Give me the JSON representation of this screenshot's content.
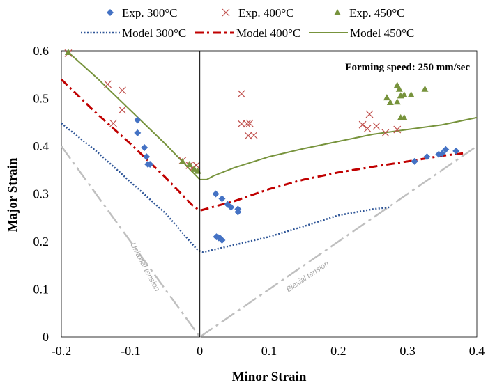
{
  "chart_data": {
    "type": "scatter",
    "xlabel": "Minor Strain",
    "ylabel": "Major Strain",
    "xlim": [
      -0.2,
      0.4
    ],
    "ylim": [
      0,
      0.6
    ],
    "x_ticks": [
      "-0.2",
      "-0.1",
      "0",
      "0.1",
      "0.2",
      "0.3",
      "0.4"
    ],
    "y_ticks": [
      "0",
      "0.1",
      "0.2",
      "0.3",
      "0.4",
      "0.5",
      "0.6"
    ],
    "grid": false,
    "legend_placement": "top",
    "annotations": {
      "speed": "Forming speed: 250 mm/sec",
      "uniaxial": "Uniaxial tension",
      "biaxial": "Biaxial tension"
    },
    "colors": {
      "s300": "#4472c4",
      "s400": "#c0504d",
      "m400": "#c00000",
      "s450": "#77933c",
      "ref": "#bfbfbf"
    },
    "series": [
      {
        "name": "Exp. 300°C",
        "kind": "scatter",
        "marker": "diamond",
        "color": "#4472c4",
        "points": [
          [
            -0.09,
            0.455
          ],
          [
            -0.09,
            0.428
          ],
          [
            -0.08,
            0.397
          ],
          [
            -0.077,
            0.378
          ],
          [
            -0.075,
            0.362
          ],
          [
            -0.072,
            0.362
          ],
          [
            0.023,
            0.3
          ],
          [
            0.032,
            0.29
          ],
          [
            0.04,
            0.278
          ],
          [
            0.045,
            0.272
          ],
          [
            0.055,
            0.268
          ],
          [
            0.055,
            0.262
          ],
          [
            0.024,
            0.21
          ],
          [
            0.027,
            0.208
          ],
          [
            0.03,
            0.206
          ],
          [
            0.032,
            0.203
          ],
          [
            0.31,
            0.368
          ],
          [
            0.328,
            0.378
          ],
          [
            0.345,
            0.383
          ],
          [
            0.35,
            0.385
          ],
          [
            0.355,
            0.393
          ],
          [
            0.37,
            0.39
          ]
        ]
      },
      {
        "name": "Exp. 400°C",
        "kind": "scatter",
        "marker": "x",
        "color": "#c0504d",
        "points": [
          [
            -0.19,
            0.595
          ],
          [
            -0.133,
            0.53
          ],
          [
            -0.112,
            0.517
          ],
          [
            -0.112,
            0.476
          ],
          [
            -0.125,
            0.448
          ],
          [
            -0.025,
            0.37
          ],
          [
            -0.015,
            0.36
          ],
          [
            -0.01,
            0.355
          ],
          [
            -0.005,
            0.36
          ],
          [
            0.06,
            0.51
          ],
          [
            0.06,
            0.447
          ],
          [
            0.068,
            0.447
          ],
          [
            0.072,
            0.448
          ],
          [
            0.07,
            0.422
          ],
          [
            0.078,
            0.423
          ],
          [
            0.235,
            0.445
          ],
          [
            0.242,
            0.437
          ],
          [
            0.245,
            0.467
          ],
          [
            0.255,
            0.442
          ],
          [
            0.268,
            0.428
          ],
          [
            0.285,
            0.435
          ]
        ]
      },
      {
        "name": "Exp. 450°C",
        "kind": "scatter",
        "marker": "triangle",
        "color": "#77933c",
        "points": [
          [
            -0.19,
            0.597
          ],
          [
            -0.025,
            0.368
          ],
          [
            -0.015,
            0.362
          ],
          [
            -0.008,
            0.352
          ],
          [
            -0.003,
            0.348
          ],
          [
            0.27,
            0.502
          ],
          [
            0.275,
            0.492
          ],
          [
            0.285,
            0.528
          ],
          [
            0.288,
            0.52
          ],
          [
            0.285,
            0.493
          ],
          [
            0.29,
            0.506
          ],
          [
            0.295,
            0.508
          ],
          [
            0.305,
            0.508
          ],
          [
            0.29,
            0.46
          ],
          [
            0.295,
            0.46
          ],
          [
            0.325,
            0.52
          ]
        ]
      },
      {
        "name": "Model 300°C",
        "kind": "line",
        "style": "dotted",
        "color": "#2e5597",
        "points": [
          [
            -0.2,
            0.448
          ],
          [
            -0.15,
            0.39
          ],
          [
            -0.1,
            0.325
          ],
          [
            -0.05,
            0.26
          ],
          [
            -0.005,
            0.185
          ],
          [
            0,
            0.18
          ],
          [
            0.005,
            0.178
          ],
          [
            0.05,
            0.193
          ],
          [
            0.1,
            0.21
          ],
          [
            0.15,
            0.232
          ],
          [
            0.2,
            0.255
          ],
          [
            0.25,
            0.268
          ],
          [
            0.275,
            0.272
          ]
        ]
      },
      {
        "name": "Model 400°C",
        "kind": "line",
        "style": "dashdot",
        "color": "#c00000",
        "points": [
          [
            -0.2,
            0.54
          ],
          [
            -0.15,
            0.47
          ],
          [
            -0.1,
            0.405
          ],
          [
            -0.05,
            0.335
          ],
          [
            -0.01,
            0.275
          ],
          [
            0,
            0.265
          ],
          [
            0.05,
            0.285
          ],
          [
            0.1,
            0.31
          ],
          [
            0.15,
            0.33
          ],
          [
            0.2,
            0.345
          ],
          [
            0.25,
            0.357
          ],
          [
            0.3,
            0.368
          ],
          [
            0.35,
            0.38
          ],
          [
            0.38,
            0.385
          ]
        ]
      },
      {
        "name": "Model 450°C",
        "kind": "line",
        "style": "solid",
        "color": "#77933c",
        "points": [
          [
            -0.19,
            0.597
          ],
          [
            -0.15,
            0.545
          ],
          [
            -0.1,
            0.475
          ],
          [
            -0.05,
            0.405
          ],
          [
            -0.01,
            0.345
          ],
          [
            0,
            0.33
          ],
          [
            0.01,
            0.33
          ],
          [
            0.02,
            0.338
          ],
          [
            0.05,
            0.355
          ],
          [
            0.1,
            0.378
          ],
          [
            0.15,
            0.395
          ],
          [
            0.2,
            0.41
          ],
          [
            0.25,
            0.425
          ],
          [
            0.3,
            0.435
          ],
          [
            0.35,
            0.445
          ],
          [
            0.4,
            0.46
          ]
        ]
      },
      {
        "kind": "line",
        "style": "dashdot-long",
        "color": "#bfbfbf",
        "points": [
          [
            -0.2,
            0.4
          ],
          [
            0,
            0
          ]
        ]
      },
      {
        "kind": "line",
        "style": "dashdot-long",
        "color": "#bfbfbf",
        "points": [
          [
            0,
            0
          ],
          [
            0.4,
            0.4
          ]
        ]
      }
    ]
  }
}
